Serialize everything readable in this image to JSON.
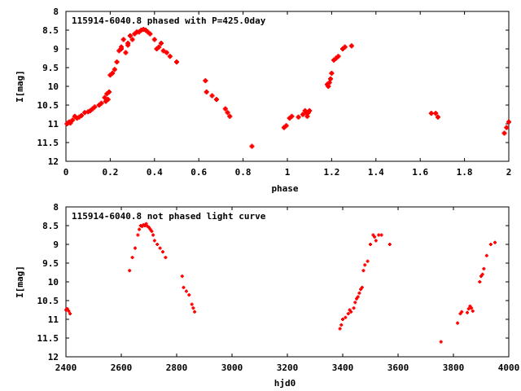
{
  "chart_data": [
    {
      "type": "scatter",
      "title": "115914-6040.8 phased with P=425.0day",
      "xlabel": "phase",
      "ylabel": "I[mag]",
      "xlim": [
        0,
        2
      ],
      "ylim": [
        12,
        8
      ],
      "y_inverted": true,
      "xticks": [
        "0",
        "0.2",
        "0.4",
        "0.6",
        "0.8",
        "1",
        "1.2",
        "1.4",
        "1.6",
        "1.8",
        "2"
      ],
      "yticks": [
        "8",
        "8.5",
        "9",
        "9.5",
        "10",
        "10.5",
        "11",
        "11.5",
        "12"
      ],
      "marker_color": "#ff0000",
      "marker": "plus",
      "x": [
        0.005,
        0.01,
        0.015,
        0.02,
        0.03,
        0.04,
        0.05,
        0.06,
        0.07,
        0.085,
        0.1,
        0.11,
        0.12,
        0.13,
        0.15,
        0.16,
        0.175,
        0.18,
        0.185,
        0.19,
        0.195,
        0.2,
        0.21,
        0.22,
        0.23,
        0.24,
        0.25,
        0.25,
        0.26,
        0.27,
        0.28,
        0.28,
        0.29,
        0.3,
        0.31,
        0.32,
        0.33,
        0.34,
        0.35,
        0.36,
        0.37,
        0.38,
        0.4,
        0.41,
        0.42,
        0.43,
        0.44,
        0.455,
        0.47,
        0.5,
        0.63,
        0.635,
        0.66,
        0.68,
        0.72,
        0.73,
        0.74,
        0.84,
        0.985,
        0.995,
        1.01,
        1.02,
        1.05,
        1.07,
        1.08,
        1.085,
        1.09,
        1.095,
        1.1,
        1.18,
        1.185,
        1.19,
        1.195,
        1.2,
        1.21,
        1.22,
        1.23,
        1.25,
        1.26,
        1.29,
        1.65,
        1.67,
        1.68,
        1.98,
        1.99,
        2.0
      ],
      "y": [
        11.0,
        10.97,
        10.95,
        10.98,
        10.9,
        10.8,
        10.85,
        10.82,
        10.78,
        10.7,
        10.68,
        10.65,
        10.6,
        10.55,
        10.5,
        10.45,
        10.3,
        10.4,
        10.2,
        10.35,
        10.15,
        9.7,
        9.65,
        9.55,
        9.35,
        9.05,
        8.95,
        9.0,
        8.75,
        9.1,
        8.85,
        8.9,
        8.65,
        8.75,
        8.6,
        8.55,
        8.55,
        8.5,
        8.48,
        8.5,
        8.55,
        8.6,
        8.75,
        9.0,
        8.95,
        8.85,
        9.05,
        9.1,
        9.2,
        9.35,
        9.85,
        10.15,
        10.25,
        10.35,
        10.6,
        10.7,
        10.8,
        11.6,
        11.1,
        11.05,
        10.85,
        10.8,
        10.82,
        10.75,
        10.65,
        10.7,
        10.8,
        10.7,
        10.65,
        9.95,
        10.0,
        9.9,
        9.8,
        9.65,
        9.3,
        9.25,
        9.2,
        9.0,
        8.95,
        8.92,
        10.72,
        10.72,
        10.82,
        11.25,
        11.1,
        10.95
      ]
    },
    {
      "type": "scatter",
      "title": "115914-6040.8 not phased light curve",
      "xlabel": "hjd0",
      "ylabel": "I[mag]",
      "xlim": [
        2400,
        4000
      ],
      "ylim": [
        12,
        8
      ],
      "y_inverted": true,
      "xticks": [
        "2400",
        "2600",
        "2800",
        "3000",
        "3200",
        "3400",
        "3600",
        "3800",
        "4000"
      ],
      "yticks": [
        "8",
        "8.5",
        "9",
        "9.5",
        "10",
        "10.5",
        "11",
        "11.5",
        "12"
      ],
      "marker_color": "#ff0000",
      "marker": "plus",
      "x": [
        2400,
        2405,
        2410,
        2415,
        2630,
        2640,
        2650,
        2660,
        2665,
        2670,
        2675,
        2680,
        2685,
        2690,
        2695,
        2700,
        2705,
        2710,
        2715,
        2720,
        2730,
        2740,
        2750,
        2760,
        2820,
        2825,
        2835,
        2845,
        2855,
        2860,
        2865,
        3390,
        3395,
        3400,
        3410,
        3420,
        3425,
        3430,
        3440,
        3445,
        3450,
        3455,
        3460,
        3465,
        3470,
        3475,
        3480,
        3490,
        3500,
        3510,
        3515,
        3520,
        3530,
        3540,
        3570,
        3755,
        3815,
        3825,
        3830,
        3850,
        3855,
        3860,
        3865,
        3870,
        3895,
        3900,
        3905,
        3910,
        3920,
        3935,
        3950
      ],
      "y": [
        10.75,
        10.72,
        10.78,
        10.85,
        9.7,
        9.35,
        9.1,
        8.75,
        8.6,
        8.5,
        8.52,
        8.48,
        8.5,
        8.45,
        8.52,
        8.55,
        8.6,
        8.65,
        8.75,
        8.9,
        9.0,
        9.1,
        9.2,
        9.35,
        9.85,
        10.15,
        10.25,
        10.35,
        10.6,
        10.7,
        10.8,
        11.25,
        11.15,
        11.0,
        10.95,
        10.85,
        10.75,
        10.8,
        10.7,
        10.55,
        10.45,
        10.4,
        10.3,
        10.2,
        10.15,
        9.7,
        9.55,
        9.45,
        9.0,
        8.75,
        8.8,
        8.9,
        8.75,
        8.75,
        9.0,
        11.6,
        11.1,
        10.85,
        10.8,
        10.82,
        10.72,
        10.65,
        10.7,
        10.78,
        10.0,
        9.85,
        9.8,
        9.65,
        9.3,
        9.0,
        8.95
      ]
    }
  ]
}
